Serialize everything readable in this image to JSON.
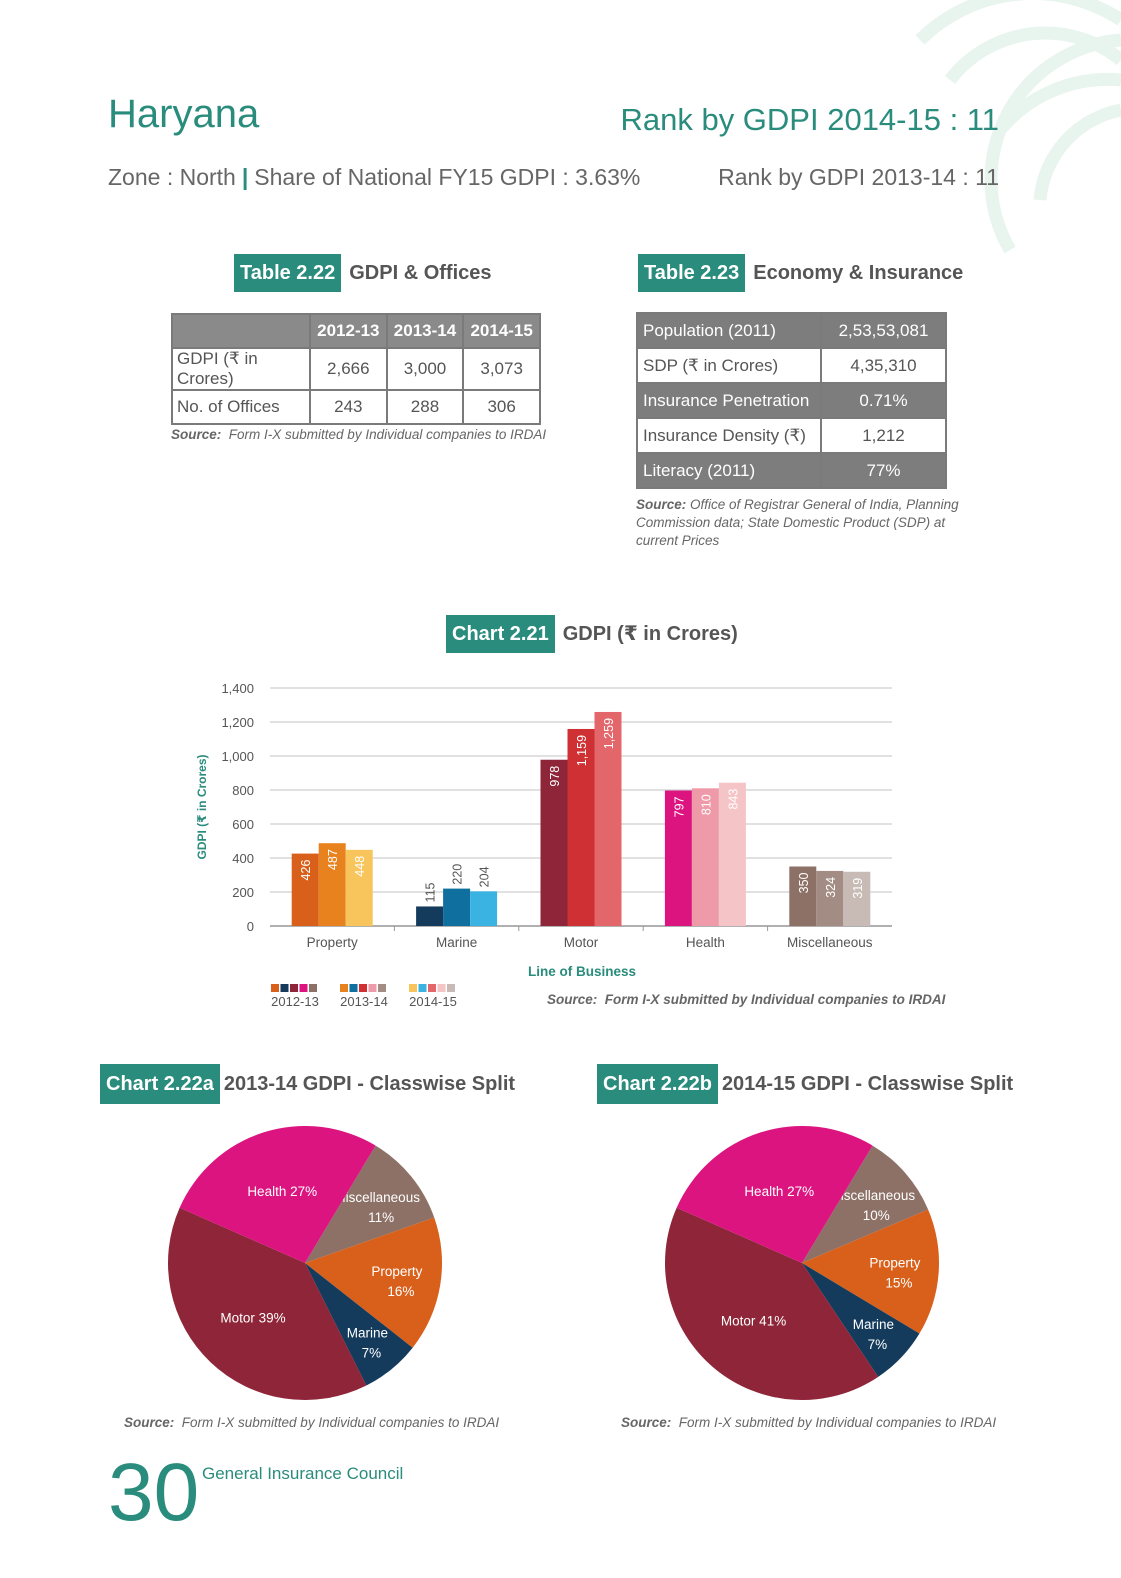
{
  "header": {
    "state": "Haryana",
    "rank_current": "Rank by GDPI 2014-15 : 11",
    "zone": "Zone : North",
    "separator": "|",
    "share": "Share of National FY15 GDPI : 3.63%",
    "rank_previous": "Rank by GDPI 2013-14 : 11"
  },
  "table_2_22": {
    "tag": "Table 2.22",
    "title": "GDPI & Offices",
    "columns": [
      "",
      "2012-13",
      "2013-14",
      "2014-15"
    ],
    "rows": [
      {
        "label": "GDPI (₹ in Crores)",
        "values": [
          "2,666",
          "3,000",
          "3,073"
        ]
      },
      {
        "label": "No. of Offices",
        "values": [
          "243",
          "288",
          "306"
        ]
      }
    ],
    "source_label": "Source:",
    "source_text": "Form I-X submitted by Individual companies to IRDAI"
  },
  "table_2_23": {
    "tag": "Table 2.23",
    "title": "Economy & Insurance",
    "rows": [
      {
        "label": "Population (2011)",
        "value": "2,53,53,081",
        "dark": true
      },
      {
        "label": "SDP (₹ in Crores)",
        "value": "4,35,310",
        "dark": false
      },
      {
        "label": "Insurance Penetration",
        "value": "0.71%",
        "dark": true
      },
      {
        "label": "Insurance Density (₹)",
        "value": "1,212",
        "dark": false
      },
      {
        "label": "Literacy (2011)",
        "value": "77%",
        "dark": true
      }
    ],
    "source_label": "Source:",
    "source_line1": "Office of Registrar General of India, Planning",
    "source_line2": "Commission data; State Domestic Product (SDP) at",
    "source_line3": "current Prices"
  },
  "chart_2_21": {
    "tag": "Chart 2.21",
    "title": "GDPI (₹ in Crores)",
    "source_label": "Source:",
    "source_text": "Form I-X submitted by Individual companies to IRDAI"
  },
  "chart_2_22a": {
    "tag": "Chart 2.22a",
    "title": "2013-14 GDPI - Classwise Split",
    "source_label": "Source:",
    "source_text": "Form I-X submitted by Individual companies to IRDAI"
  },
  "chart_2_22b": {
    "tag": "Chart 2.22b",
    "title": "2014-15 GDPI - Classwise Split",
    "source_label": "Source:",
    "source_text": "Form I-X submitted by Individual companies to IRDAI"
  },
  "footer": {
    "page_number": "30",
    "publisher": "General Insurance Council"
  },
  "chart_data": [
    {
      "type": "bar",
      "title": "GDPI (₹ in Crores)",
      "xlabel": "Line of Business",
      "ylabel": "GDPI (₹ in Crores)",
      "ylim": [
        0,
        1400
      ],
      "yticks": [
        "0",
        "200",
        "400",
        "600",
        "800",
        "1,000",
        "1,200",
        "1,400"
      ],
      "grid": true,
      "categories": [
        "Property",
        "Marine",
        "Motor",
        "Health",
        "Miscellaneous"
      ],
      "series": [
        {
          "name": "2012-13",
          "values": [
            426,
            115,
            978,
            797,
            350
          ],
          "labels": [
            "426",
            "115",
            "978",
            "797",
            "350"
          ]
        },
        {
          "name": "2013-14",
          "values": [
            487,
            220,
            1159,
            810,
            324
          ],
          "labels": [
            "487",
            "220",
            "1,159",
            "810",
            "324"
          ]
        },
        {
          "name": "2014-15",
          "values": [
            448,
            204,
            1259,
            843,
            319
          ],
          "labels": [
            "448",
            "204",
            "1,259",
            "843",
            "319"
          ]
        }
      ],
      "colors": [
        [
          "#d9601b",
          "#e8821f",
          "#f7c55c"
        ],
        [
          "#143b5c",
          "#0f6f9e",
          "#3ab3e3"
        ],
        [
          "#8e2538",
          "#cf3033",
          "#e3676a"
        ],
        [
          "#dc1480",
          "#ef9aa8",
          "#f5c4c7"
        ],
        [
          "#8d7166",
          "#a38c84",
          "#c8bbb6"
        ]
      ],
      "legend_placement": "bottom-left"
    },
    {
      "type": "pie",
      "title": "2013-14 GDPI - Classwise Split",
      "slices": [
        {
          "name": "Miscellaneous",
          "value": 11,
          "label": "11%",
          "color": "#8d7166"
        },
        {
          "name": "Property",
          "value": 16,
          "label": "16%",
          "color": "#d9601b"
        },
        {
          "name": "Marine",
          "value": 7,
          "label": "7%",
          "color": "#143b5c"
        },
        {
          "name": "Motor",
          "value": 39,
          "label": "39%",
          "color": "#8e2538"
        },
        {
          "name": "Health",
          "value": 27,
          "label": "27%",
          "color": "#dc1480"
        }
      ]
    },
    {
      "type": "pie",
      "title": "2014-15 GDPI - Classwise Split",
      "slices": [
        {
          "name": "Miscellaneous",
          "value": 10,
          "label": "10%",
          "color": "#8d7166"
        },
        {
          "name": "Property",
          "value": 15,
          "label": "15%",
          "color": "#d9601b"
        },
        {
          "name": "Marine",
          "value": 7,
          "label": "7%",
          "color": "#143b5c"
        },
        {
          "name": "Motor",
          "value": 41,
          "label": "41%",
          "color": "#8e2538"
        },
        {
          "name": "Health",
          "value": 27,
          "label": "27%",
          "color": "#dc1480"
        }
      ]
    }
  ]
}
